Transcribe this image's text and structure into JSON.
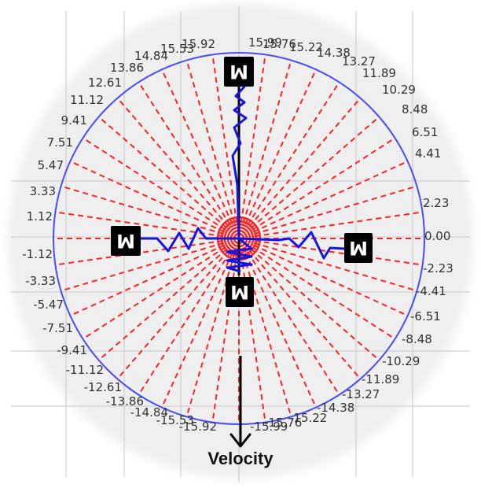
{
  "diagram": {
    "colors": {
      "background": "#ffffff",
      "halo": "#efefef",
      "grid": "#c8c8c8",
      "circle": "#4a4aff",
      "rays": "#ff2222",
      "spring": "#1414e6",
      "rod": "#000000",
      "mass_box": "#000000",
      "mass_text": "#ffffff",
      "tick_text": "#333333",
      "arrow": "#000000"
    },
    "ticks_right": [
      "0.00",
      "2.23",
      "4.41",
      "6.51",
      "8.48",
      "10.29",
      "11.89",
      "13.27",
      "14.38",
      "15.22",
      "15.76",
      "15.99"
    ],
    "ticks_left": [
      "15.92",
      "15.53",
      "14.84",
      "13.86",
      "12.61",
      "11.12",
      "9.41",
      "7.51",
      "5.47",
      "3.33",
      "1.12"
    ],
    "ticks_lower_left": [
      "-1.12",
      "-3.33",
      "-5.47",
      "-7.51",
      "-9.41",
      "-11.12",
      "-12.61",
      "-13.86",
      "-14.84",
      "-15.53",
      "-15.92"
    ],
    "ticks_lower_right": [
      "-2.23",
      "-4.41",
      "-6.51",
      "-8.48",
      "-10.29",
      "-11.89",
      "-13.27",
      "-14.38",
      "-15.22",
      "-15.76",
      "-15.99"
    ],
    "masses": [
      {
        "name": "mass-top",
        "label": "M"
      },
      {
        "name": "mass-left",
        "label": "M"
      },
      {
        "name": "mass-right",
        "label": "M"
      },
      {
        "name": "mass-bottom",
        "label": "M"
      }
    ],
    "velocity_label": "Velocity"
  }
}
